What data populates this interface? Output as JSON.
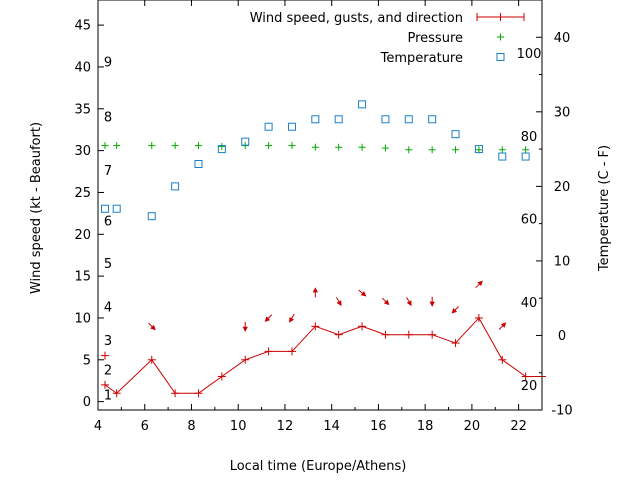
{
  "chart_data": {
    "type": "line",
    "xlabel": "Local time (Europe/Athens)",
    "ylabel_left": "Wind speed (kt - Beaufort)",
    "ylabel_right": "Temperature (C - F)",
    "xlim": [
      4,
      23
    ],
    "ylim_left": [
      -1,
      48
    ],
    "ylim_right": [
      -10,
      45
    ],
    "x_ticks": [
      4,
      6,
      8,
      10,
      12,
      14,
      16,
      18,
      20,
      22
    ],
    "y_left_ticks": [
      0,
      5,
      10,
      15,
      20,
      25,
      30,
      35,
      40,
      45
    ],
    "y_right_ticks": [
      -10,
      0,
      10,
      20,
      30,
      40
    ],
    "beaufort_labels": [
      {
        "text": "1",
        "kt": 0.8
      },
      {
        "text": "2",
        "kt": 3.8
      },
      {
        "text": "3",
        "kt": 7.3
      },
      {
        "text": "4",
        "kt": 11.3
      },
      {
        "text": "5",
        "kt": 16.5
      },
      {
        "text": "6",
        "kt": 21.6
      },
      {
        "text": "7",
        "kt": 27.6
      },
      {
        "text": "8",
        "kt": 34.0
      },
      {
        "text": "9",
        "kt": 40.6
      }
    ],
    "fahrenheit_labels": [
      {
        "text": "20",
        "celsius": -6.7
      },
      {
        "text": "40",
        "celsius": 4.4
      },
      {
        "text": "60",
        "celsius": 15.6
      },
      {
        "text": "80",
        "celsius": 26.7
      },
      {
        "text": "100",
        "celsius": 37.8
      }
    ],
    "series": [
      {
        "name": "Wind speed, gusts, and direction",
        "color": "#cc0000",
        "x": [
          4.3,
          4.8,
          6.3,
          7.3,
          8.3,
          9.3,
          10.3,
          11.3,
          12.3,
          13.3,
          14.3,
          15.3,
          16.3,
          17.3,
          18.3,
          19.3,
          20.3,
          21.3,
          22.3,
          23.0
        ],
        "y": [
          2,
          1,
          5,
          1,
          1,
          3,
          5,
          6,
          6,
          9,
          8,
          9,
          8,
          8,
          8,
          7,
          10,
          5,
          3,
          3
        ],
        "gust_x": [
          4.3
        ],
        "gust_y": [
          5.5
        ],
        "direction_x": [
          6.3,
          10.3,
          11.3,
          12.3,
          13.3,
          14.3,
          15.3,
          16.3,
          17.3,
          18.3,
          19.3,
          20.3,
          21.3
        ],
        "direction_y": [
          9,
          9,
          10,
          10,
          13,
          12,
          13,
          12,
          12,
          12,
          11,
          14,
          9
        ],
        "direction_deg": [
          315,
          270,
          225,
          240,
          90,
          300,
          320,
          315,
          300,
          270,
          225,
          45,
          45
        ]
      },
      {
        "name": "Pressure",
        "color": "#00aa00",
        "x": [
          4.3,
          4.8,
          6.3,
          7.3,
          8.3,
          9.3,
          10.3,
          11.3,
          12.3,
          13.3,
          14.3,
          15.3,
          16.3,
          17.3,
          18.3,
          19.3,
          20.3,
          21.3,
          22.3
        ],
        "y": [
          30.6,
          30.6,
          30.6,
          30.6,
          30.6,
          30.5,
          30.6,
          30.6,
          30.6,
          30.4,
          30.4,
          30.4,
          30.3,
          30.1,
          30.1,
          30.1,
          30.1,
          30.1,
          30.1
        ]
      },
      {
        "name": "Temperature",
        "color": "#1a7fc8",
        "axis": "right",
        "x": [
          4.3,
          4.8,
          6.3,
          7.3,
          8.3,
          9.3,
          10.3,
          11.3,
          12.3,
          13.3,
          14.3,
          15.3,
          16.3,
          17.3,
          18.3,
          19.3,
          20.3,
          21.3,
          22.3
        ],
        "y": [
          17,
          17,
          16,
          20,
          23,
          25,
          26,
          28,
          28,
          29,
          29,
          31,
          29,
          29,
          29,
          27,
          25,
          24,
          24
        ]
      }
    ]
  }
}
